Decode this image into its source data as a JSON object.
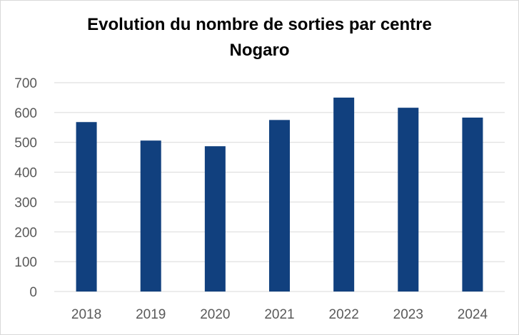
{
  "chart_data": {
    "type": "bar",
    "title": [
      "Evolution du nombre de sorties par centre",
      "Nogaro"
    ],
    "categories": [
      "2018",
      "2019",
      "2020",
      "2021",
      "2022",
      "2023",
      "2024"
    ],
    "series": [
      {
        "values": [
          568,
          506,
          487,
          575,
          650,
          616,
          583
        ]
      }
    ],
    "ylim": [
      0,
      700
    ],
    "yticks": [
      "0",
      "100",
      "200",
      "300",
      "400",
      "500",
      "600",
      "700"
    ],
    "grid": true,
    "legend": "none",
    "bar_color": "#11407e",
    "grid_color": "#d9d9d9"
  }
}
